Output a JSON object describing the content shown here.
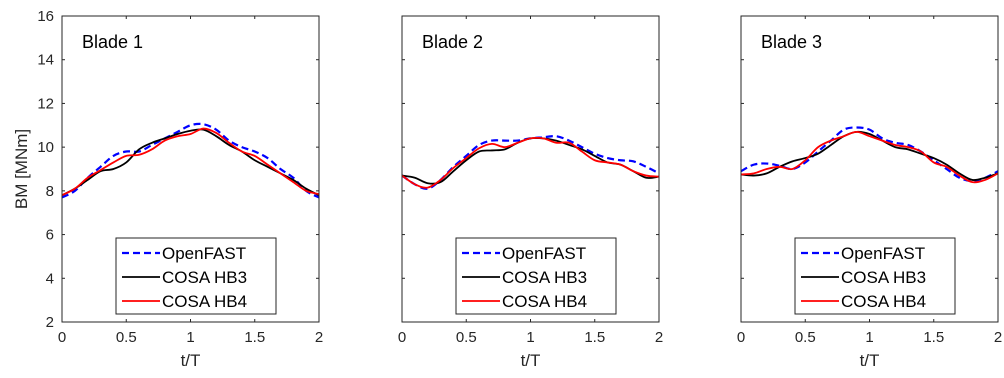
{
  "chart_data": {
    "type": "line",
    "ylabel": "BM [MNm]",
    "ylim": [
      2,
      16
    ],
    "yticks": [
      2,
      4,
      6,
      8,
      10,
      12,
      14,
      16
    ],
    "xlim": [
      0,
      2
    ],
    "xticks": [
      0,
      0.5,
      1,
      1.5,
      2
    ],
    "xtick_labels": [
      "0",
      "0.5",
      "1",
      "1.5",
      "2"
    ],
    "grid": false,
    "legend_placement": "lower-center",
    "series_styles": [
      {
        "name": "OpenFAST",
        "color": "#0000ff",
        "dash": "dashed"
      },
      {
        "name": "COSA HB3",
        "color": "#000000",
        "dash": "solid"
      },
      {
        "name": "COSA HB4",
        "color": "#ff0000",
        "dash": "solid"
      }
    ],
    "panels": [
      {
        "title": "Blade 1",
        "xlabel": "t/T",
        "series": [
          {
            "name": "OpenFAST",
            "x": [
              0,
              0.1,
              0.2,
              0.3,
              0.4,
              0.5,
              0.6,
              0.7,
              0.8,
              0.9,
              1.0,
              1.1,
              1.2,
              1.3,
              1.4,
              1.5,
              1.6,
              1.7,
              1.8,
              1.9,
              2.0
            ],
            "y": [
              7.7,
              8.0,
              8.6,
              9.1,
              9.6,
              9.8,
              9.8,
              10.1,
              10.4,
              10.7,
              11.0,
              11.05,
              10.8,
              10.3,
              10.0,
              9.8,
              9.5,
              9.0,
              8.6,
              8.0,
              7.7
            ]
          },
          {
            "name": "COSA HB3",
            "x": [
              0,
              0.1,
              0.2,
              0.3,
              0.4,
              0.5,
              0.6,
              0.7,
              0.8,
              0.9,
              1.0,
              1.1,
              1.2,
              1.3,
              1.4,
              1.5,
              1.6,
              1.7,
              1.8,
              1.9,
              2.0
            ],
            "y": [
              7.8,
              8.1,
              8.5,
              8.9,
              9.0,
              9.3,
              9.9,
              10.2,
              10.4,
              10.6,
              10.75,
              10.8,
              10.5,
              10.1,
              9.8,
              9.4,
              9.1,
              8.8,
              8.5,
              8.1,
              7.8
            ]
          },
          {
            "name": "COSA HB4",
            "x": [
              0,
              0.1,
              0.2,
              0.3,
              0.4,
              0.5,
              0.6,
              0.7,
              0.8,
              0.9,
              1.0,
              1.1,
              1.2,
              1.3,
              1.4,
              1.5,
              1.6,
              1.7,
              1.8,
              1.9,
              2.0
            ],
            "y": [
              7.8,
              8.1,
              8.6,
              8.95,
              9.3,
              9.6,
              9.65,
              9.9,
              10.3,
              10.5,
              10.6,
              10.85,
              10.65,
              10.2,
              9.8,
              9.6,
              9.2,
              8.8,
              8.4,
              8.0,
              7.85
            ]
          }
        ]
      },
      {
        "title": "Blade 2",
        "xlabel": "t/T",
        "series": [
          {
            "name": "OpenFAST",
            "x": [
              0,
              0.1,
              0.2,
              0.3,
              0.4,
              0.5,
              0.6,
              0.7,
              0.8,
              0.9,
              1.0,
              1.1,
              1.2,
              1.3,
              1.4,
              1.5,
              1.6,
              1.7,
              1.8,
              1.9,
              2.0
            ],
            "y": [
              8.7,
              8.3,
              8.1,
              8.5,
              9.1,
              9.6,
              10.1,
              10.3,
              10.3,
              10.3,
              10.4,
              10.45,
              10.5,
              10.3,
              10.0,
              9.7,
              9.5,
              9.4,
              9.35,
              9.1,
              8.8
            ]
          },
          {
            "name": "COSA HB3",
            "x": [
              0,
              0.1,
              0.2,
              0.3,
              0.4,
              0.5,
              0.6,
              0.7,
              0.8,
              0.9,
              1.0,
              1.1,
              1.2,
              1.3,
              1.4,
              1.5,
              1.6,
              1.7,
              1.8,
              1.9,
              2.0
            ],
            "y": [
              8.7,
              8.6,
              8.35,
              8.4,
              8.9,
              9.4,
              9.8,
              9.85,
              9.9,
              10.2,
              10.4,
              10.4,
              10.3,
              10.1,
              9.9,
              9.6,
              9.3,
              9.2,
              8.9,
              8.6,
              8.65
            ]
          },
          {
            "name": "COSA HB4",
            "x": [
              0,
              0.1,
              0.2,
              0.3,
              0.4,
              0.5,
              0.6,
              0.7,
              0.8,
              0.9,
              1.0,
              1.1,
              1.2,
              1.3,
              1.4,
              1.5,
              1.6,
              1.7,
              1.8,
              1.9,
              2.0
            ],
            "y": [
              8.7,
              8.3,
              8.15,
              8.5,
              9.05,
              9.5,
              9.95,
              10.15,
              10.0,
              10.2,
              10.4,
              10.4,
              10.2,
              10.2,
              9.8,
              9.4,
              9.3,
              9.2,
              8.9,
              8.7,
              8.65
            ]
          }
        ]
      },
      {
        "title": "Blade 3",
        "xlabel": "t/T",
        "series": [
          {
            "name": "OpenFAST",
            "x": [
              0,
              0.1,
              0.2,
              0.3,
              0.4,
              0.5,
              0.6,
              0.7,
              0.8,
              0.9,
              1.0,
              1.1,
              1.2,
              1.3,
              1.4,
              1.5,
              1.6,
              1.7,
              1.8,
              1.9,
              2.0
            ],
            "y": [
              8.9,
              9.2,
              9.25,
              9.15,
              9.0,
              9.3,
              9.8,
              10.3,
              10.8,
              10.9,
              10.8,
              10.4,
              10.2,
              10.1,
              9.8,
              9.4,
              9.0,
              8.6,
              8.45,
              8.6,
              8.9
            ]
          },
          {
            "name": "COSA HB3",
            "x": [
              0,
              0.1,
              0.2,
              0.3,
              0.4,
              0.5,
              0.6,
              0.7,
              0.8,
              0.9,
              1.0,
              1.1,
              1.2,
              1.3,
              1.4,
              1.5,
              1.6,
              1.7,
              1.8,
              1.9,
              2.0
            ],
            "y": [
              8.75,
              8.7,
              8.8,
              9.1,
              9.35,
              9.5,
              9.7,
              10.1,
              10.5,
              10.7,
              10.6,
              10.3,
              10.0,
              9.9,
              9.7,
              9.5,
              9.2,
              8.8,
              8.5,
              8.6,
              8.8
            ]
          },
          {
            "name": "COSA HB4",
            "x": [
              0,
              0.1,
              0.2,
              0.3,
              0.4,
              0.5,
              0.6,
              0.7,
              0.8,
              0.9,
              1.0,
              1.1,
              1.2,
              1.3,
              1.4,
              1.5,
              1.6,
              1.7,
              1.8,
              1.9,
              2.0
            ],
            "y": [
              8.75,
              8.8,
              9.0,
              9.1,
              9.0,
              9.4,
              10.0,
              10.3,
              10.5,
              10.7,
              10.5,
              10.3,
              10.1,
              10.0,
              9.8,
              9.3,
              9.1,
              8.7,
              8.4,
              8.5,
              8.8
            ]
          }
        ]
      }
    ]
  }
}
